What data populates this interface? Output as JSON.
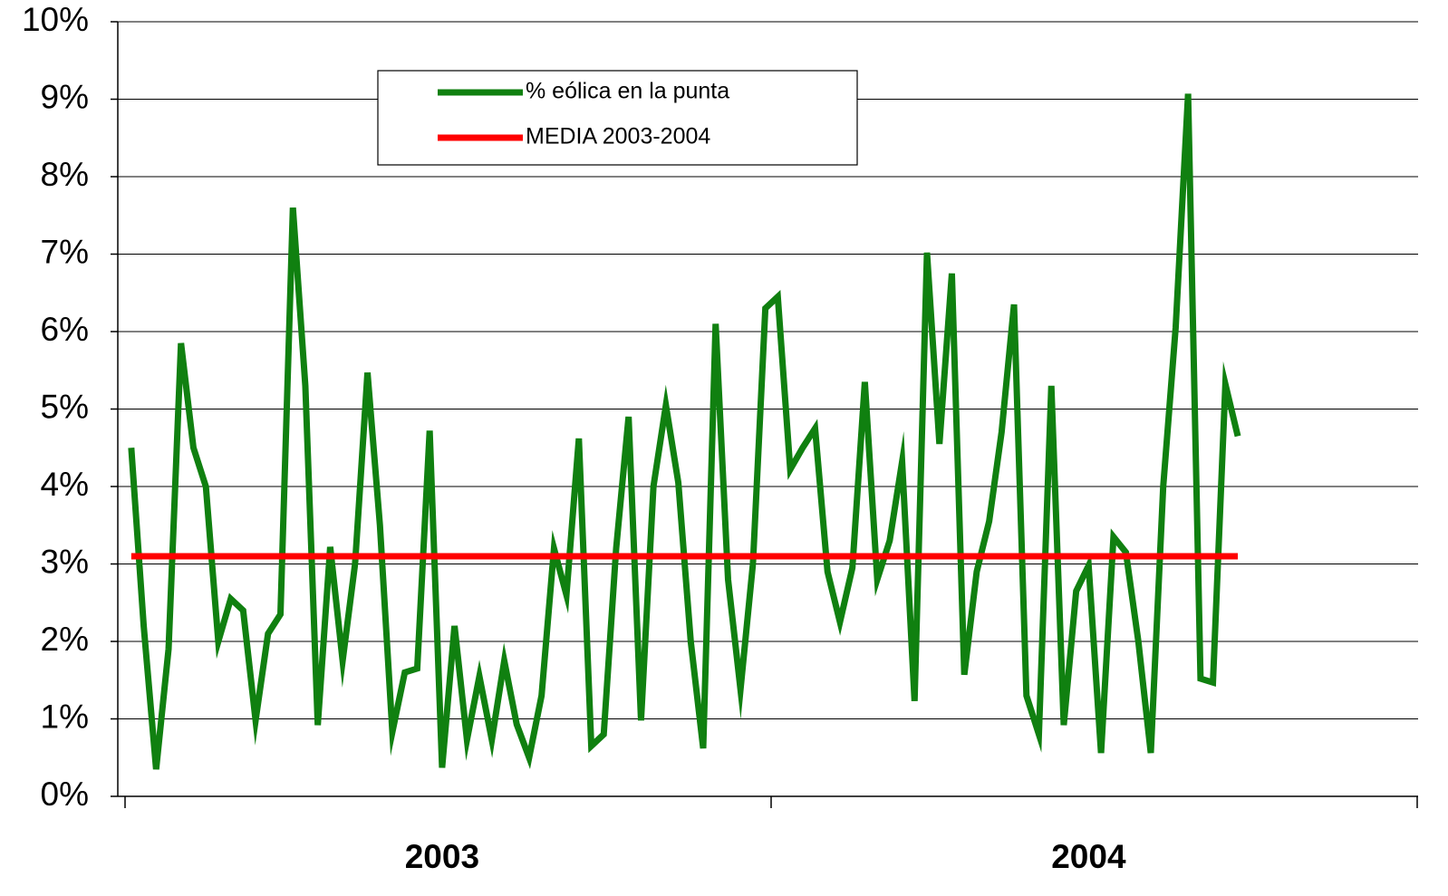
{
  "chart_data": {
    "type": "line",
    "categories": [
      null,
      null,
      null,
      null,
      null,
      null,
      null,
      null,
      null,
      null,
      null,
      null,
      null,
      null,
      null,
      null,
      null,
      null,
      null,
      null,
      null,
      null,
      null,
      null,
      null,
      "2003",
      null,
      null,
      null,
      null,
      null,
      null,
      null,
      null,
      null,
      null,
      null,
      null,
      null,
      null,
      null,
      null,
      null,
      null,
      null,
      null,
      null,
      null,
      null,
      null,
      null,
      null,
      null,
      null,
      null,
      null,
      null,
      null,
      null,
      null,
      null,
      null,
      null,
      null,
      null,
      null,
      null,
      null,
      null,
      null,
      null,
      null,
      null,
      null,
      null,
      null,
      null,
      "2004",
      null,
      null,
      null,
      null,
      null,
      null,
      null,
      null,
      null,
      null,
      null,
      null,
      null,
      null,
      null,
      null,
      null,
      null,
      null,
      null,
      null,
      null,
      null,
      null,
      null,
      null
    ],
    "series": [
      {
        "name": "% eólica en la punta",
        "color": "#108010",
        "values": [
          4.5,
          2.2,
          0.35,
          1.9,
          5.85,
          4.5,
          4.0,
          2.0,
          2.55,
          2.4,
          0.98,
          2.1,
          2.35,
          7.6,
          5.3,
          0.92,
          3.22,
          1.75,
          3.0,
          5.47,
          3.5,
          0.83,
          1.6,
          1.65,
          4.72,
          0.37,
          2.2,
          0.73,
          1.55,
          0.73,
          1.75,
          0.93,
          0.5,
          1.3,
          3.2,
          2.6,
          4.62,
          0.65,
          0.8,
          3.2,
          4.9,
          0.98,
          4.0,
          5.05,
          4.05,
          2.0,
          0.62,
          6.1,
          2.8,
          1.38,
          3.0,
          6.3,
          6.45,
          4.22,
          4.5,
          4.75,
          2.9,
          2.25,
          2.95,
          5.35,
          2.8,
          3.3,
          4.32,
          1.23,
          7.02,
          4.55,
          6.75,
          1.57,
          2.9,
          3.55,
          4.7,
          6.35,
          1.3,
          0.8,
          5.3,
          0.92,
          2.65,
          2.98,
          0.56,
          3.35,
          3.15,
          2.0,
          0.56,
          4.0,
          6.05,
          9.07,
          1.52,
          1.47,
          5.32,
          4.65,
          null,
          null,
          null,
          null,
          null,
          null,
          null,
          null,
          null,
          null,
          null,
          null,
          null,
          null
        ]
      },
      {
        "name": "MEDIA 2003-2004",
        "color": "#ff0000",
        "values": [
          3.1,
          3.1,
          3.1,
          3.1,
          3.1,
          3.1,
          3.1,
          3.1,
          3.1,
          3.1,
          3.1,
          3.1,
          3.1,
          3.1,
          3.1,
          3.1,
          3.1,
          3.1,
          3.1,
          3.1,
          3.1,
          3.1,
          3.1,
          3.1,
          3.1,
          3.1,
          3.1,
          3.1,
          3.1,
          3.1,
          3.1,
          3.1,
          3.1,
          3.1,
          3.1,
          3.1,
          3.1,
          3.1,
          3.1,
          3.1,
          3.1,
          3.1,
          3.1,
          3.1,
          3.1,
          3.1,
          3.1,
          3.1,
          3.1,
          3.1,
          3.1,
          3.1,
          3.1,
          3.1,
          3.1,
          3.1,
          3.1,
          3.1,
          3.1,
          3.1,
          3.1,
          3.1,
          3.1,
          3.1,
          3.1,
          3.1,
          3.1,
          3.1,
          3.1,
          3.1,
          3.1,
          3.1,
          3.1,
          3.1,
          3.1,
          3.1,
          3.1,
          3.1,
          3.1,
          3.1,
          3.1,
          3.1,
          3.1,
          3.1,
          3.1,
          3.1,
          3.1,
          3.1,
          3.1,
          3.1,
          null,
          null,
          null,
          null,
          null,
          null,
          null,
          null,
          null,
          null,
          null,
          null,
          null,
          null
        ]
      }
    ],
    "ylim": [
      0,
      10
    ],
    "yticks": [
      {
        "value": 0,
        "label": "0%"
      },
      {
        "value": 1,
        "label": "1%"
      },
      {
        "value": 2,
        "label": "2%"
      },
      {
        "value": 3,
        "label": "3%"
      },
      {
        "value": 4,
        "label": "4%"
      },
      {
        "value": 5,
        "label": "5%"
      },
      {
        "value": 6,
        "label": "6%"
      },
      {
        "value": 7,
        "label": "7%"
      },
      {
        "value": 8,
        "label": "8%"
      },
      {
        "value": 9,
        "label": "9%"
      },
      {
        "value": 10,
        "label": "10%"
      }
    ],
    "grid": true
  }
}
